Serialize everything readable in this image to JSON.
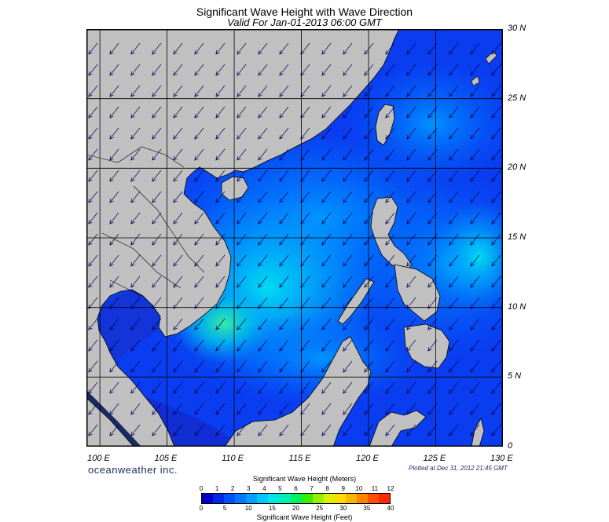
{
  "title": "Significant Wave Height with Wave Direction",
  "subtitle": "Valid For Jan-01-2013 06:00 GMT",
  "map": {
    "lon_range": [
      99,
      130
    ],
    "lat_range": [
      0,
      30
    ],
    "grid_lon": [
      100,
      105,
      110,
      115,
      120,
      125,
      130
    ],
    "grid_lat": [
      0,
      5,
      10,
      15,
      20,
      25,
      30
    ],
    "lon_labels": [
      "100 E",
      "105 E",
      "110 E",
      "115 E",
      "120 E",
      "125 E",
      "130 E"
    ],
    "lat_labels": [
      "0",
      "5 N",
      "10 N",
      "15 N",
      "20 N",
      "25 N",
      "30 N"
    ],
    "land_color": "#c0c0c0",
    "ocean_color": "#0a50f0",
    "wave_direction": "from northeast"
  },
  "brand": "oceanweather inc.",
  "plotted": "Plotted at Dec 31, 2012 21:45 GMT",
  "colorbar": {
    "title_meters": "Significant Wave Height (Meters)",
    "title_feet": "Significant Wave Height (Feet)",
    "meter_ticks": [
      "0",
      "1",
      "2",
      "3",
      "4",
      "5",
      "6",
      "7",
      "8",
      "9",
      "10",
      "11",
      "12"
    ],
    "feet_ticks": [
      "0",
      "5",
      "10",
      "15",
      "20",
      "25",
      "30",
      "35",
      "40"
    ],
    "colors": [
      "#0000c8",
      "#0028e6",
      "#0050ff",
      "#0078ff",
      "#00a0ff",
      "#00c8ff",
      "#00e6e6",
      "#00f0b4",
      "#00f064",
      "#32f000",
      "#96f000",
      "#dcf000",
      "#ffdc00",
      "#ffb400",
      "#ff8200",
      "#ff5000",
      "#ff2800"
    ]
  }
}
